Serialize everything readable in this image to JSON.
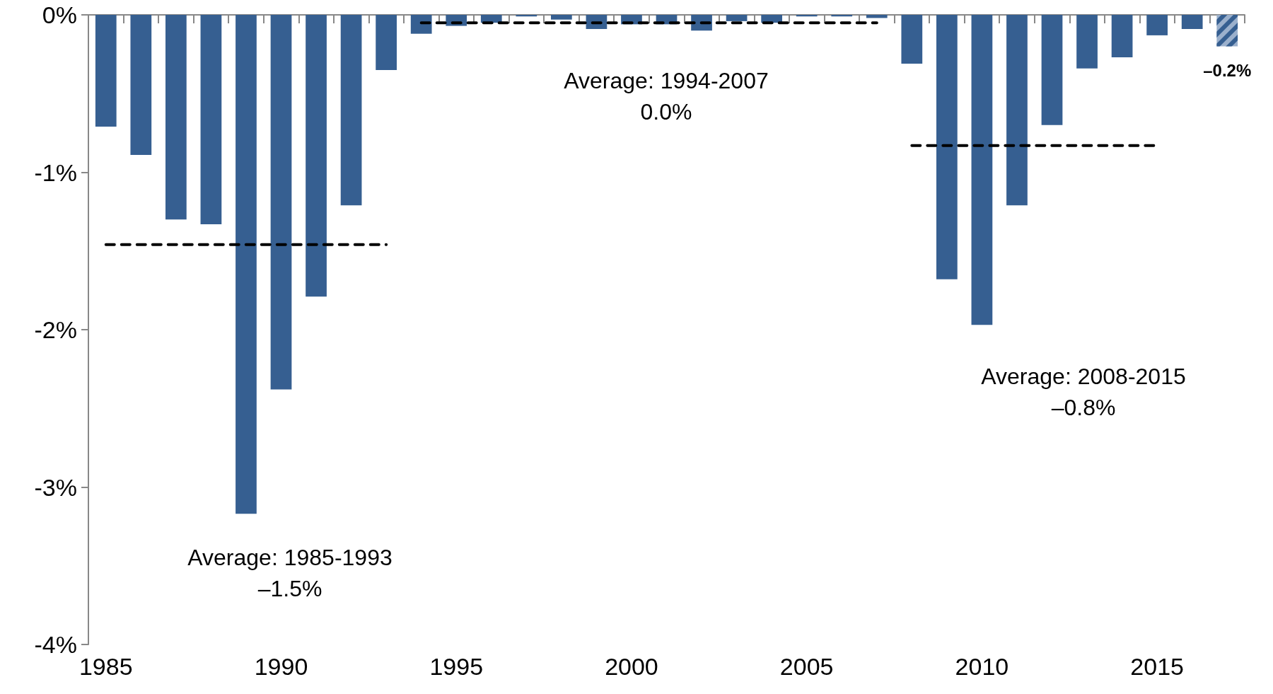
{
  "chart_data": {
    "type": "bar",
    "x": [
      1985,
      1986,
      1987,
      1988,
      1989,
      1990,
      1991,
      1992,
      1993,
      1994,
      1995,
      1996,
      1997,
      1998,
      1999,
      2000,
      2001,
      2002,
      2003,
      2004,
      2005,
      2006,
      2007,
      2008,
      2009,
      2010,
      2011,
      2012,
      2013,
      2014,
      2015,
      2016,
      2017
    ],
    "xlim": [
      1984.5,
      2017.5
    ],
    "xticks": [
      1985,
      1990,
      1995,
      2000,
      2005,
      2010,
      2015
    ],
    "ylim": [
      -4,
      0
    ],
    "yticks": [
      {
        "value": -4,
        "label": "-4%"
      },
      {
        "value": -3,
        "label": "-3%"
      },
      {
        "value": -2,
        "label": "-2%"
      },
      {
        "value": -1,
        "label": "-1%"
      },
      {
        "value": 0,
        "label": "0%"
      }
    ],
    "series": [
      {
        "color": "#365f91",
        "values": [
          -0.71,
          -0.89,
          -1.3,
          -1.33,
          -3.17,
          -2.38,
          -1.79,
          -1.21,
          -0.35,
          -0.12,
          -0.07,
          -0.05,
          -0.01,
          -0.03,
          -0.09,
          -0.06,
          -0.06,
          -0.1,
          -0.04,
          -0.05,
          -0.01,
          -0.01,
          -0.02,
          -0.31,
          -1.68,
          -1.97,
          -1.21,
          -0.7,
          -0.34,
          -0.27,
          -0.13,
          -0.09,
          -0.2
        ],
        "colors": [
          "#365f91",
          "#365f91",
          "#365f91",
          "#365f91",
          "#365f91",
          "#365f91",
          "#365f91",
          "#365f91",
          "#365f91",
          "#365f91",
          "#365f91",
          "#365f91",
          "#365f91",
          "#365f91",
          "#365f91",
          "#365f91",
          "#365f91",
          "#365f91",
          "#365f91",
          "#365f91",
          "#365f91",
          "#365f91",
          "#365f91",
          "#365f91",
          "#365f91",
          "#365f91",
          "#365f91",
          "#365f91",
          "#365f91",
          "#365f91",
          "#365f91",
          "#365f91",
          "#9bb0cc"
        ],
        "value_labels": [
          null,
          null,
          null,
          null,
          null,
          null,
          null,
          null,
          null,
          null,
          null,
          null,
          null,
          null,
          null,
          null,
          null,
          null,
          null,
          null,
          null,
          null,
          null,
          null,
          null,
          null,
          null,
          null,
          null,
          null,
          null,
          null,
          "–0.2%"
        ]
      },
      {
        "type": "line",
        "color": "#000000",
        "line_style": "dashed",
        "marker": "none",
        "x": [
          1985,
          1993
        ],
        "values": [
          -1.46,
          -1.46
        ]
      },
      {
        "type": "line",
        "color": "#000000",
        "line_style": "dashed",
        "marker": "none",
        "x": [
          1994,
          2007
        ],
        "values": [
          -0.05,
          -0.05
        ]
      },
      {
        "type": "line",
        "color": "#000000",
        "line_style": "dashed",
        "marker": "none",
        "x": [
          2008,
          2015
        ],
        "values": [
          -0.83,
          -0.83
        ]
      }
    ],
    "annotations": [
      "Average: 1985-1993\n–1.5%",
      "Average: 1994-2007\n0.0%",
      "Average: 2008-2015\n–0.8%"
    ],
    "grid": false
  }
}
